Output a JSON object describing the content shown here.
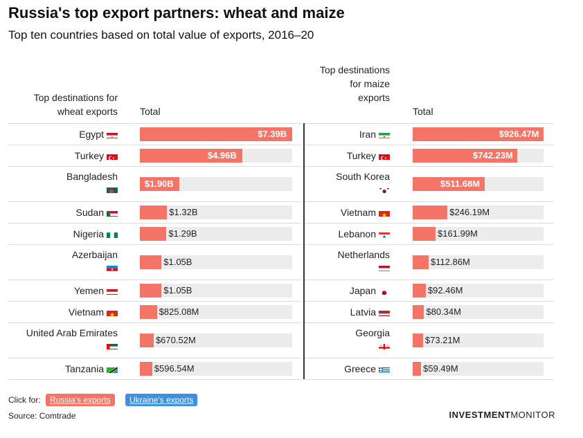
{
  "title": "Russia's top export partners: wheat and maize",
  "subtitle": "Top ten countries based on total value of exports, 2016–20",
  "wheat_header": "Top destinations for wheat exports",
  "maize_header": "Top destinations for maize exports",
  "total_header": "Total",
  "footer": {
    "click_for": "Click for:",
    "russia_button": "Russia's exports",
    "ukraine_button": "Ukraine's exports",
    "source": "Source: Comtrade",
    "brand_bold": "INVESTMENT",
    "brand_light": "MONITOR"
  },
  "colors": {
    "bar": "#f47567",
    "track": "#ececec",
    "russia_btn": "#f47567",
    "ukraine_btn": "#3d8fe0"
  },
  "chart_data": [
    {
      "type": "bar",
      "title": "Top destinations for wheat exports",
      "unit": "USD",
      "categories": [
        "Egypt",
        "Turkey",
        "Bangladesh",
        "Sudan",
        "Nigeria",
        "Azerbaijan",
        "Yemen",
        "Vietnam",
        "United Arab Emirates",
        "Tanzania"
      ],
      "values": [
        7390000000,
        4960000000,
        1900000000,
        1320000000,
        1290000000,
        1050000000,
        1050000000,
        825080000,
        670520000,
        596540000
      ],
      "labels": [
        "$7.39B",
        "$4.96B",
        "$1.90B",
        "$1.32B",
        "$1.29B",
        "$1.05B",
        "$1.05B",
        "$825.08M",
        "$670.52M",
        "$596.54M"
      ],
      "flags": [
        "egypt",
        "turkey",
        "bangladesh",
        "sudan",
        "nigeria",
        "azerbaijan",
        "yemen",
        "vietnam",
        "uae",
        "tanzania"
      ],
      "xlim": [
        0,
        7390000000
      ]
    },
    {
      "type": "bar",
      "title": "Top destinations for maize exports",
      "unit": "USD",
      "categories": [
        "Iran",
        "Turkey",
        "South Korea",
        "Vietnam",
        "Lebanon",
        "Netherlands",
        "Japan",
        "Latvia",
        "Georgia",
        "Greece"
      ],
      "values": [
        926470000,
        742230000,
        511680000,
        246190000,
        161990000,
        112860000,
        92460000,
        80340000,
        73210000,
        59490000
      ],
      "labels": [
        "$926.47M",
        "$742.23M",
        "$511.68M",
        "$246.19M",
        "$161.99M",
        "$112.86M",
        "$92.46M",
        "$80.34M",
        "$73.21M",
        "$59.49M"
      ],
      "flags": [
        "iran",
        "turkey",
        "southkorea",
        "vietnam",
        "lebanon",
        "netherlands",
        "japan",
        "latvia",
        "georgia",
        "greece"
      ],
      "xlim": [
        0,
        926470000
      ]
    }
  ]
}
